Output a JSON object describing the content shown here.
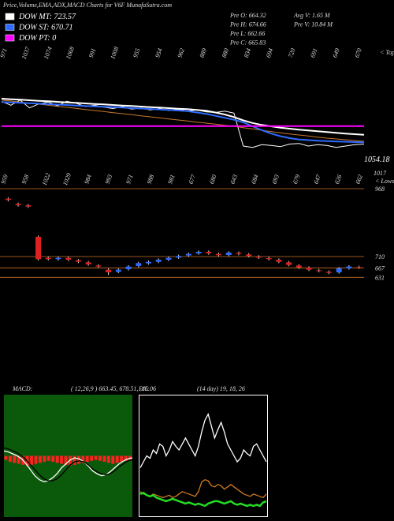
{
  "header": {
    "title": "Price,Volume,EMA,ADX,MACD Charts for V6F MunafaSutra.com",
    "stats": [
      [
        "Pre  O: 664.32",
        "Pre  H: 674.66",
        "Pre  L: 662.66",
        "Pre  C: 665.83"
      ],
      [
        "Avg V: 1.65 M",
        "Pre  V: 10.84  M"
      ]
    ]
  },
  "chart_data": [
    {
      "type": "line",
      "ylim": [
        560,
        1400
      ],
      "tops_label": "< Tops",
      "tops": [
        971,
        1037,
        1074,
        1068,
        991,
        1008,
        955,
        954,
        962,
        889,
        880,
        834,
        694,
        720,
        691,
        649,
        670
      ],
      "last_label": "1054.18",
      "sub_label": "1017",
      "series": [
        {
          "color": "#ffffff",
          "values": [
            990,
            960,
            1000,
            940,
            970,
            985,
            955,
            990,
            975,
            950,
            960,
            945,
            935,
            950,
            930,
            940,
            925,
            935,
            920,
            930,
            915,
            925,
            910,
            905,
            915,
            900,
            650,
            640,
            660,
            655,
            645,
            665,
            670,
            650,
            660,
            655,
            640,
            650,
            660,
            665
          ]
        },
        {
          "color": "#c8782a",
          "values": [
            1000,
            992,
            984,
            976,
            968,
            960,
            952,
            944,
            936,
            928,
            920,
            912,
            904,
            896,
            888,
            880,
            872,
            864,
            856,
            848,
            840,
            832,
            824,
            816,
            808,
            800,
            790,
            780,
            770,
            760,
            750,
            742,
            734,
            726,
            718,
            710,
            704,
            698,
            692,
            686
          ]
        },
        {
          "name": "DOW MT: 723.57",
          "color": "#ffffff",
          "values": [
            1010,
            1006,
            1002,
            998,
            994,
            990,
            986,
            982,
            978,
            974,
            970,
            966,
            962,
            958,
            954,
            950,
            946,
            942,
            938,
            934,
            930,
            925,
            918,
            905,
            890,
            870,
            845,
            825,
            810,
            800,
            790,
            782,
            775,
            768,
            762,
            756,
            750,
            745,
            740,
            735
          ]
        },
        {
          "name": "DOW ST: 670.71",
          "color": "#2f6bff",
          "values": [
            985,
            982,
            978,
            975,
            972,
            968,
            965,
            962,
            958,
            955,
            952,
            948,
            945,
            942,
            938,
            935,
            932,
            928,
            925,
            920,
            915,
            905,
            895,
            880,
            865,
            850,
            830,
            800,
            770,
            745,
            725,
            710,
            700,
            695,
            690,
            688,
            685,
            683,
            680,
            678
          ]
        },
        {
          "name": "DOW PT: 0",
          "color": "#ff00ff",
          "values": [
            802,
            802,
            802,
            802,
            802,
            802,
            802,
            802,
            802,
            802,
            802,
            802,
            802,
            802,
            802,
            802,
            802,
            802,
            802,
            802,
            802,
            802,
            802,
            802,
            802,
            802,
            802,
            802,
            802,
            802,
            802,
            802,
            802,
            802,
            802,
            802,
            802,
            802,
            802,
            802
          ]
        }
      ]
    },
    {
      "type": "candlestick",
      "ylim": [
        575,
        1010
      ],
      "yticks": [
        968,
        710,
        667,
        631
      ],
      "grid": true,
      "lows_label": "< Lows",
      "lows": [
        959,
        958,
        1022,
        1029,
        984,
        993,
        971,
        988,
        981,
        677,
        680,
        643,
        684,
        693,
        679,
        647,
        626,
        662
      ],
      "up_color": "#2f6bff",
      "down_color": "#e02020",
      "open": [
        930,
        910,
        905,
        785,
        705,
        700,
        705,
        696,
        688,
        676,
        660,
        652,
        662,
        674,
        684,
        690,
        698,
        706,
        714,
        722,
        728,
        720,
        716,
        724,
        718,
        710,
        704,
        698,
        688,
        676,
        668,
        658,
        652,
        650,
        665,
        670
      ],
      "high": [
        935,
        915,
        910,
        790,
        710,
        710,
        710,
        701,
        693,
        681,
        665,
        665,
        677,
        690,
        695,
        703,
        710,
        717,
        725,
        733,
        733,
        725,
        730,
        729,
        723,
        715,
        709,
        703,
        693,
        681,
        673,
        663,
        657,
        670,
        677,
        675
      ],
      "low": [
        920,
        900,
        895,
        695,
        695,
        695,
        693,
        685,
        675,
        667,
        640,
        647,
        657,
        669,
        679,
        685,
        693,
        701,
        709,
        717,
        717,
        710,
        711,
        715,
        707,
        701,
        695,
        685,
        673,
        663,
        655,
        650,
        643,
        645,
        660,
        663
      ],
      "close": [
        925,
        905,
        900,
        700,
        700,
        705,
        698,
        690,
        680,
        672,
        650,
        660,
        672,
        685,
        690,
        698,
        705,
        712,
        720,
        728,
        722,
        715,
        725,
        720,
        712,
        706,
        700,
        690,
        678,
        668,
        660,
        655,
        648,
        665,
        672,
        668
      ]
    },
    {
      "type": "macd",
      "title": "MACD:",
      "subtitle": "( 12,26,9 ) 663.45,  678.51,  -15.06",
      "ylim": [
        -60,
        60
      ],
      "histogram_color": "#ff2020",
      "histogram": [
        -4,
        -6,
        -7,
        -8,
        -9,
        -10,
        -9,
        -8,
        -7,
        -6,
        -5,
        -6,
        -7,
        -8,
        -9,
        -10,
        -9,
        -8,
        -7,
        -6,
        -5,
        -4,
        -5,
        -6,
        -7,
        -8,
        -7,
        -6,
        -5,
        -4
      ],
      "series": [
        {
          "color": "#ffffff",
          "values": [
            5,
            4,
            2,
            0,
            -3,
            -8,
            -14,
            -20,
            -24,
            -26,
            -25,
            -22,
            -18,
            -12,
            -8,
            -4,
            -2,
            -3,
            -6,
            -10,
            -15,
            -18,
            -20,
            -19,
            -16,
            -12,
            -8,
            -5,
            -3,
            -2
          ]
        },
        {
          "color": "#000000",
          "values": [
            8,
            7,
            5,
            3,
            0,
            -4,
            -9,
            -14,
            -19,
            -23,
            -25,
            -25,
            -23,
            -19,
            -14,
            -9,
            -6,
            -5,
            -6,
            -9,
            -13,
            -16,
            -18,
            -19,
            -18,
            -15,
            -11,
            -8,
            -5,
            -4
          ]
        }
      ]
    },
    {
      "type": "line",
      "title": "DX:",
      "subtitle": "(14  day) 19,  18,  26",
      "ylim": [
        0,
        100
      ],
      "series": [
        {
          "color": "#ffffff",
          "values": [
            40,
            45,
            50,
            48,
            55,
            52,
            60,
            58,
            50,
            55,
            62,
            58,
            55,
            60,
            65,
            60,
            55,
            50,
            58,
            70,
            80,
            85,
            75,
            65,
            72,
            78,
            70,
            60,
            55,
            50,
            45,
            48,
            55,
            52,
            50,
            58,
            60,
            55,
            50,
            45
          ]
        },
        {
          "color": "#d07a20",
          "values": [
            20,
            18,
            17,
            16,
            18,
            17,
            16,
            15,
            16,
            17,
            15,
            16,
            18,
            20,
            19,
            18,
            17,
            16,
            20,
            28,
            30,
            29,
            25,
            24,
            26,
            25,
            22,
            24,
            26,
            24,
            22,
            20,
            18,
            17,
            16,
            18,
            17,
            16,
            15,
            18
          ]
        },
        {
          "color": "#22dd22",
          "values": [
            18,
            19,
            17,
            16,
            17,
            15,
            14,
            13,
            12,
            13,
            14,
            13,
            12,
            11,
            10,
            11,
            10,
            9,
            10,
            9,
            8,
            10,
            11,
            12,
            12,
            11,
            10,
            11,
            12,
            10,
            9,
            10,
            9,
            8,
            9,
            8,
            9,
            8,
            11,
            12
          ]
        }
      ]
    }
  ]
}
